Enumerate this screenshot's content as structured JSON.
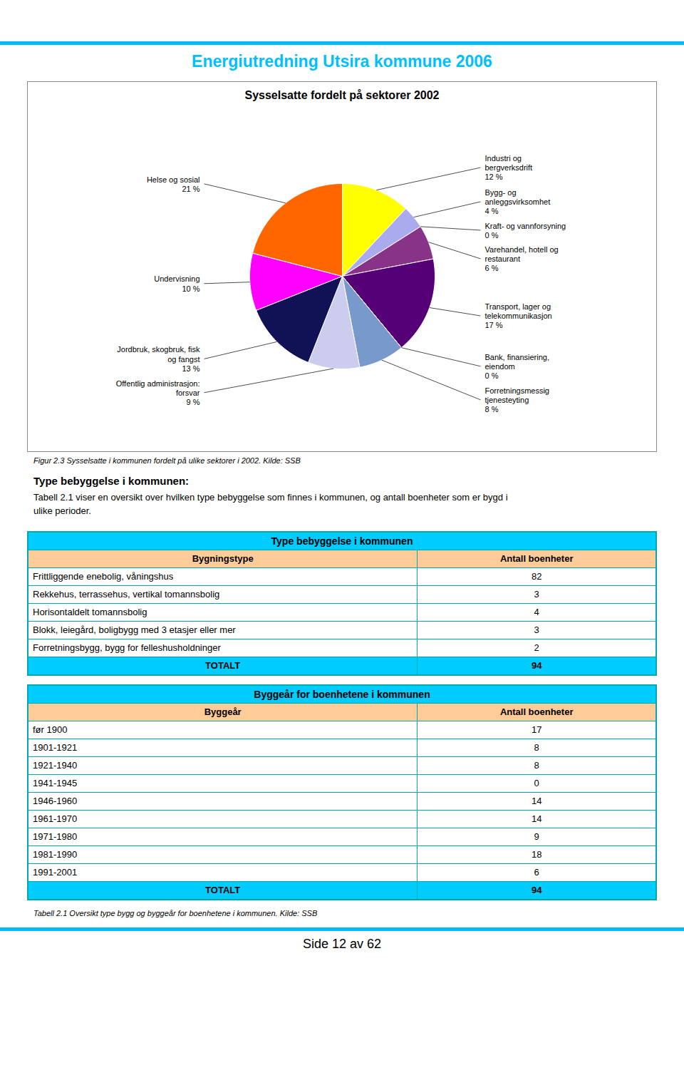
{
  "page_title": "Energiutredning Utsira kommune 2006",
  "chart_data": {
    "type": "pie",
    "title": "Sysselsatte fordelt på sektorer 2002",
    "categories": [
      "Industri og\nbergverksdrift",
      "Bygg- og\nanleggsvirksomhet",
      "Kraft- og vannforsyning",
      "Varehandel, hotell og\nrestaurant",
      "Transport, lager og\ntelekommunikasjon",
      "Bank, finansiering,\neiendom",
      "Forretningsmessig\ntjenesteyting",
      "Offentlig administrasjon:\nforsvar",
      "Jordbruk, skogbruk, fisk\nog fangst",
      "Undervisning",
      "Helse og sosial"
    ],
    "values": [
      12,
      4,
      0,
      6,
      17,
      0,
      8,
      9,
      13,
      10,
      21
    ],
    "value_labels": [
      "12 %",
      "4 %",
      "0 %",
      "6 %",
      "17 %",
      "0 %",
      "8 %",
      "9 %",
      "13 %",
      "10 %",
      "21 %"
    ],
    "colors": [
      "#FFFF00",
      "#AAAAEE",
      "#AADDEE",
      "#883388",
      "#550077",
      "#4444CC",
      "#7799CC",
      "#CCCCEE",
      "#111155",
      "#FF00FF",
      "#FF6600"
    ],
    "data_labels": true
  },
  "caption": "Figur 2.3 Sysselsatte i kommunen fordelt på ulike sektorer i 2002. Kilde: SSB",
  "section_title": "Type bebyggelse i kommunen:",
  "paragraph": [
    "Tabell 2.1 viser en oversikt over hvilken type bebyggelse som finnes i kommunen, og antall boenheter som er bygd i",
    "ulike perioder."
  ],
  "tables": [
    {
      "title": "Type bebyggelse i kommunen",
      "columns": [
        "Bygningstype",
        "Antall boenheter"
      ],
      "rows": [
        [
          "Frittliggende enebolig, våningshus",
          "82"
        ],
        [
          "Rekkehus, terrassehus, vertikal tomannsbolig",
          "3"
        ],
        [
          "Horisontaldelt tomannsbolig",
          "4"
        ],
        [
          "Blokk, leiegård, boligbygg med 3 etasjer eller mer",
          "3"
        ],
        [
          "Forretningsbygg, bygg for felleshusholdninger",
          "2"
        ],
        [
          "TOTALT",
          "94"
        ]
      ]
    },
    {
      "title": "Byggeår for boenhetene i kommunen",
      "columns": [
        "Byggeår",
        "Antall boenheter"
      ],
      "rows": [
        [
          "før 1900",
          "17"
        ],
        [
          "1901-1921",
          "8"
        ],
        [
          "1921-1940",
          "8"
        ],
        [
          "1941-1945",
          "0"
        ],
        [
          "1946-1960",
          "14"
        ],
        [
          "1961-1970",
          "14"
        ],
        [
          "1971-1980",
          "9"
        ],
        [
          "1981-1990",
          "18"
        ],
        [
          "1991-2001",
          "6"
        ],
        [
          "TOTALT",
          "94"
        ]
      ]
    }
  ],
  "table_caption": "Tabell 2.1 Oversikt type bygg og byggeår for boenhetene i kommunen. Kilde: SSB",
  "footer": "Side 12 av 62"
}
